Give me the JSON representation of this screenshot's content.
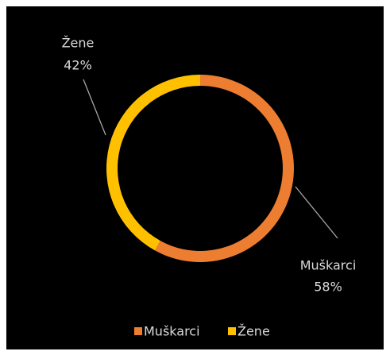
{
  "chart_data": {
    "type": "donut",
    "categories": [
      "Muškarci",
      "Žene"
    ],
    "values": [
      58,
      42
    ],
    "value_labels": [
      "58%",
      "42%"
    ],
    "colors": [
      "#ED7D31",
      "#FFC000"
    ],
    "legend": "bottom"
  }
}
